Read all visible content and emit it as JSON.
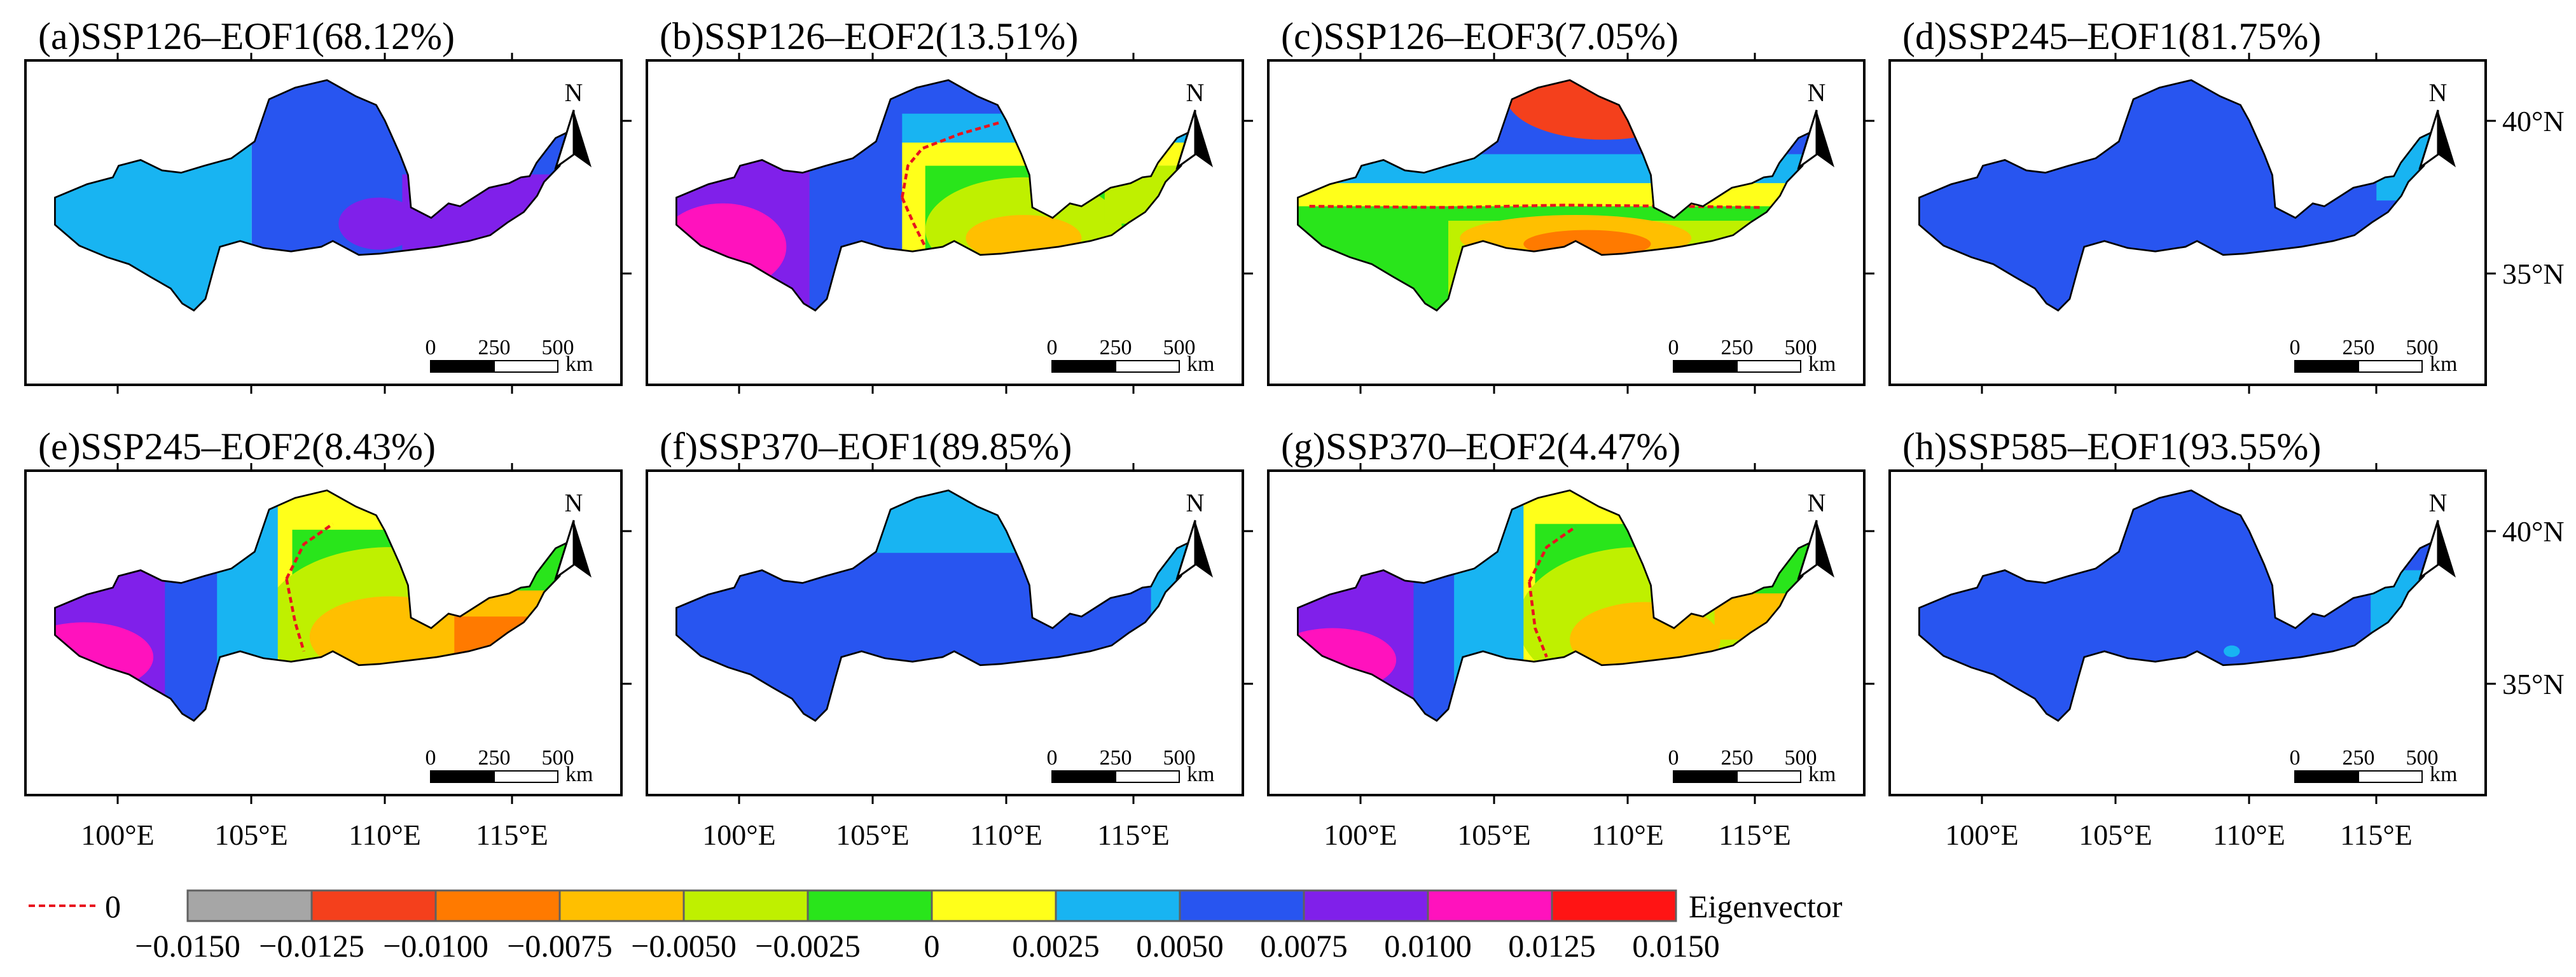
{
  "chart_data": {
    "type": "map-panels",
    "panels": [
      {
        "label": "(a)SSP126–EOF1(68.12%)",
        "scenario": "SSP126",
        "mode": "EOF1",
        "variance_percent": 68.12,
        "zones": [
          {
            "band": 7
          },
          {
            "band": 8
          },
          {
            "band": 9
          }
        ],
        "zero_contour": false
      },
      {
        "label": "(b)SSP126–EOF2(13.51%)",
        "scenario": "SSP126",
        "mode": "EOF2",
        "variance_percent": 13.51,
        "zones": [
          {
            "band": 7
          },
          {
            "band": 6
          },
          {
            "band": 5
          },
          {
            "band": 4
          },
          {
            "band": 3
          },
          {
            "band": 8
          },
          {
            "band": 9
          },
          {
            "band": 10
          }
        ],
        "zero_contour": true
      },
      {
        "label": "(c)SSP126–EOF3(7.05%)",
        "scenario": "SSP126",
        "mode": "EOF3",
        "variance_percent": 7.05,
        "zones": [
          {
            "band": 8
          },
          {
            "band": 7
          },
          {
            "band": 6
          },
          {
            "band": 5
          },
          {
            "band": 4
          },
          {
            "band": 3
          },
          {
            "band": 2
          },
          {
            "band": 1
          }
        ],
        "zero_contour": true
      },
      {
        "label": "(d)SSP245–EOF1(81.75%)",
        "scenario": "SSP245",
        "mode": "EOF1",
        "variance_percent": 81.75,
        "zones": [
          {
            "band": 8
          },
          {
            "band": 7
          }
        ],
        "zero_contour": false
      },
      {
        "label": "(e)SSP245–EOF2(8.43%)",
        "scenario": "SSP245",
        "mode": "EOF2",
        "variance_percent": 8.43,
        "zones": [
          {
            "band": 6
          },
          {
            "band": 5
          },
          {
            "band": 4
          },
          {
            "band": 3
          },
          {
            "band": 2
          },
          {
            "band": 7
          },
          {
            "band": 8
          },
          {
            "band": 9
          },
          {
            "band": 10
          }
        ],
        "zero_contour": true
      },
      {
        "label": "(f)SSP370–EOF1(89.85%)",
        "scenario": "SSP370",
        "mode": "EOF1",
        "variance_percent": 89.85,
        "zones": [
          {
            "band": 8
          },
          {
            "band": 7
          }
        ],
        "zero_contour": false
      },
      {
        "label": "(g)SSP370–EOF2(4.47%)",
        "scenario": "SSP370",
        "mode": "EOF2",
        "variance_percent": 4.47,
        "zones": [
          {
            "band": 6
          },
          {
            "band": 5
          },
          {
            "band": 4
          },
          {
            "band": 3
          },
          {
            "band": 7
          },
          {
            "band": 8
          },
          {
            "band": 9
          },
          {
            "band": 10
          }
        ],
        "zero_contour": true
      },
      {
        "label": "(h)SSP585–EOF1(93.55%)",
        "scenario": "SSP585",
        "mode": "EOF1",
        "variance_percent": 93.55,
        "zones": [
          {
            "band": 8
          },
          {
            "band": 7
          }
        ],
        "zero_contour": false
      }
    ],
    "x_ticks": [
      "100°E",
      "105°E",
      "110°E",
      "115°E"
    ],
    "y_ticks": [
      "40°N",
      "35°N"
    ],
    "scale_bar": {
      "labels": [
        "0",
        "250",
        "500"
      ],
      "unit": "km"
    },
    "north_arrow": "N",
    "legend": {
      "contour_label": "0",
      "contour_color": "#e8141e",
      "title": "Eigenvector",
      "ticks": [
        "−0.0150",
        "−0.0125",
        "−0.0100",
        "−0.0075",
        "−0.0050",
        "−0.0025",
        "0",
        "0.0025",
        "0.0050",
        "0.0075",
        "0.0100",
        "0.0125",
        "0.0150"
      ],
      "range": [
        -0.015,
        0.015
      ],
      "band_colors": [
        "#a6a6a6",
        "#f4401c",
        "#ff7a00",
        "#ffbf00",
        "#bff000",
        "#29e51b",
        "#ffff1a",
        "#18b4f2",
        "#2855f0",
        "#8020ea",
        "#ff12bd",
        "#ff1414"
      ]
    }
  }
}
